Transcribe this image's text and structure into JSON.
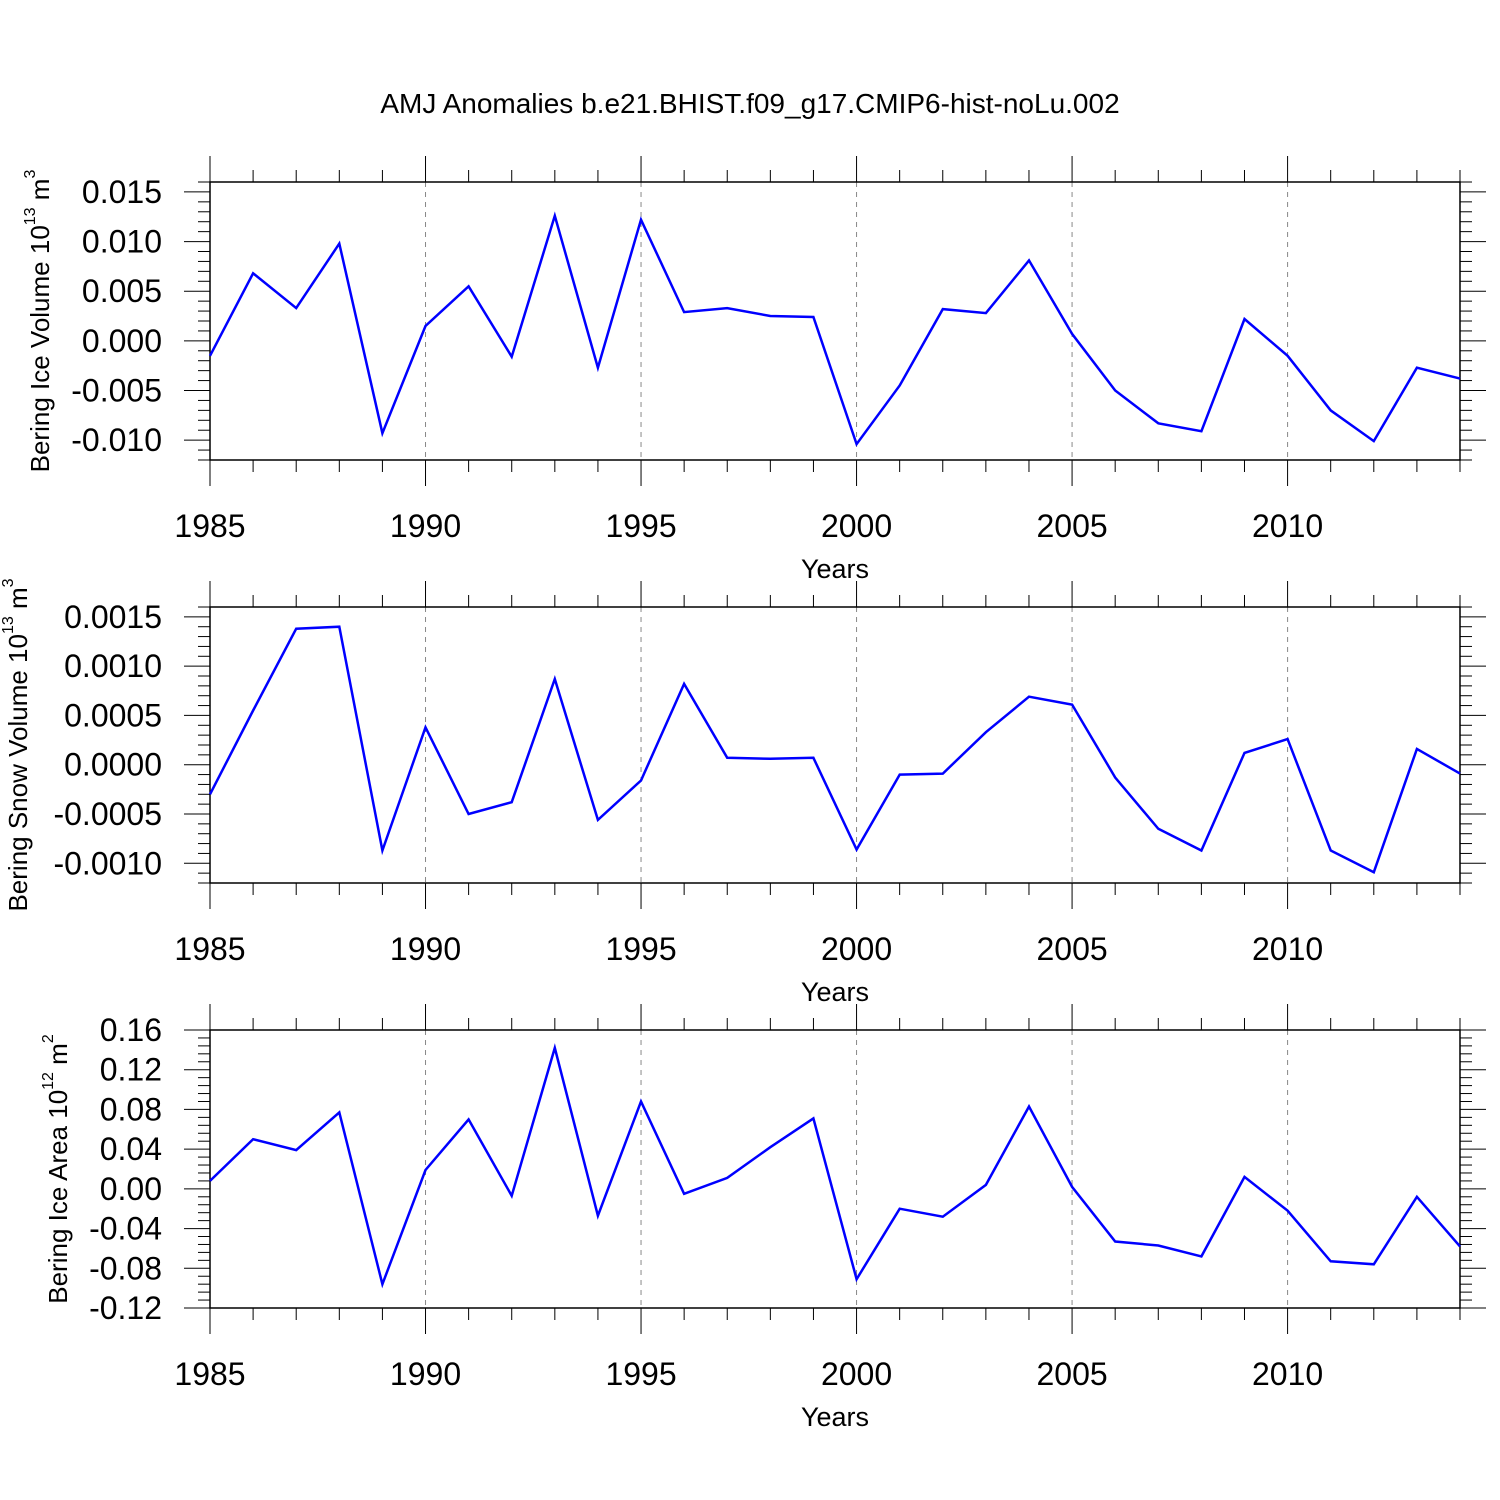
{
  "title": "AMJ Anomalies b.e21.BHIST.f09_g17.CMIP6-hist-noLu.002",
  "colors": {
    "line": "#0000ff",
    "axis": "#000000",
    "grid": "#888888"
  },
  "chart_data": [
    {
      "type": "line",
      "title": "AMJ Anomalies b.e21.BHIST.f09_g17.CMIP6-hist-noLu.002",
      "xlabel": "Years",
      "ylabel": {
        "base": "Bering Ice Volume 10",
        "exp": "13",
        "unit": " m",
        "unit_exp": "3"
      },
      "xlim": [
        1985,
        2014
      ],
      "ylim": [
        -0.012,
        0.016
      ],
      "xticks": [
        1985,
        1990,
        1995,
        2000,
        2005,
        2010
      ],
      "xtick_labels": [
        "1985",
        "1990",
        "1995",
        "2000",
        "2005",
        "2010"
      ],
      "yticks": [
        -0.01,
        -0.005,
        0.0,
        0.005,
        0.01,
        0.015
      ],
      "ytick_labels": [
        "-0.010",
        "-0.005",
        "0.000",
        "0.005",
        "0.010",
        "0.015"
      ],
      "grid": "vertical dashed at major x ticks",
      "series": [
        {
          "name": "Bering Ice Volume",
          "x": [
            1985,
            1986,
            1987,
            1988,
            1989,
            1990,
            1991,
            1992,
            1993,
            1994,
            1995,
            1996,
            1997,
            1998,
            1999,
            2000,
            2001,
            2002,
            2003,
            2004,
            2005,
            2006,
            2007,
            2008,
            2009,
            2010,
            2011,
            2012,
            2013,
            2014
          ],
          "values": [
            -0.0015,
            0.0068,
            0.0033,
            0.0098,
            -0.0093,
            0.0015,
            0.0055,
            -0.0016,
            0.0126,
            -0.0027,
            0.0122,
            0.0029,
            0.0033,
            0.0025,
            0.0024,
            -0.0104,
            -0.0045,
            0.0032,
            0.0028,
            0.0081,
            0.0007,
            -0.005,
            -0.0083,
            -0.0091,
            0.0022,
            -0.0015,
            -0.007,
            -0.0101,
            -0.0027,
            -0.0038
          ]
        }
      ]
    },
    {
      "type": "line",
      "xlabel": "Years",
      "ylabel": {
        "base": "Bering Snow Volume 10",
        "exp": "13",
        "unit": " m",
        "unit_exp": "3"
      },
      "xlim": [
        1985,
        2014
      ],
      "ylim": [
        -0.0012,
        0.0016
      ],
      "xticks": [
        1985,
        1990,
        1995,
        2000,
        2005,
        2010
      ],
      "xtick_labels": [
        "1985",
        "1990",
        "1995",
        "2000",
        "2005",
        "2010"
      ],
      "yticks": [
        -0.001,
        -0.0005,
        0.0,
        0.0005,
        0.001,
        0.0015
      ],
      "ytick_labels": [
        "-0.0010",
        "-0.0005",
        "0.0000",
        "0.0005",
        "0.0010",
        "0.0015"
      ],
      "grid": "vertical dashed at major x ticks",
      "series": [
        {
          "name": "Bering Snow Volume",
          "x": [
            1985,
            1986,
            1987,
            1988,
            1989,
            1990,
            1991,
            1992,
            1993,
            1994,
            1995,
            1996,
            1997,
            1998,
            1999,
            2000,
            2001,
            2002,
            2003,
            2004,
            2005,
            2006,
            2007,
            2008,
            2009,
            2010,
            2011,
            2012,
            2013,
            2014
          ],
          "values": [
            -0.0003,
            0.00055,
            0.00138,
            0.0014,
            -0.00087,
            0.00038,
            -0.0005,
            -0.00038,
            0.00087,
            -0.00056,
            -0.00016,
            0.00082,
            7e-05,
            6e-05,
            7e-05,
            -0.00086,
            -0.0001,
            -9e-05,
            0.00033,
            0.00069,
            0.00061,
            -0.00013,
            -0.00065,
            -0.00087,
            0.00012,
            0.00026,
            -0.00087,
            -0.00109,
            0.00016,
            -9e-05
          ]
        }
      ]
    },
    {
      "type": "line",
      "xlabel": "Years",
      "ylabel": {
        "base": "Bering Ice Area 10",
        "exp": "12",
        "unit": " m",
        "unit_exp": "2"
      },
      "xlim": [
        1985,
        2014
      ],
      "ylim": [
        -0.12,
        0.16
      ],
      "xticks": [
        1985,
        1990,
        1995,
        2000,
        2005,
        2010
      ],
      "xtick_labels": [
        "1985",
        "1990",
        "1995",
        "2000",
        "2005",
        "2010"
      ],
      "yticks": [
        -0.12,
        -0.08,
        -0.04,
        0.0,
        0.04,
        0.08,
        0.12,
        0.16
      ],
      "ytick_labels": [
        "-0.12",
        "-0.08",
        "-0.04",
        "0.00",
        "0.04",
        "0.08",
        "0.12",
        "0.16"
      ],
      "grid": "vertical dashed at major x ticks",
      "series": [
        {
          "name": "Bering Ice Area",
          "x": [
            1985,
            1986,
            1987,
            1988,
            1989,
            1990,
            1991,
            1992,
            1993,
            1994,
            1995,
            1996,
            1997,
            1998,
            1999,
            2000,
            2001,
            2002,
            2003,
            2004,
            2005,
            2006,
            2007,
            2008,
            2009,
            2010,
            2011,
            2012,
            2013,
            2014
          ],
          "values": [
            0.008,
            0.05,
            0.039,
            0.077,
            -0.096,
            0.019,
            0.07,
            -0.007,
            0.142,
            -0.027,
            0.088,
            -0.005,
            0.011,
            0.042,
            0.071,
            -0.091,
            -0.02,
            -0.028,
            0.004,
            0.083,
            0.002,
            -0.053,
            -0.057,
            -0.068,
            0.012,
            -0.022,
            -0.073,
            -0.076,
            -0.008,
            -0.058
          ]
        }
      ]
    }
  ]
}
